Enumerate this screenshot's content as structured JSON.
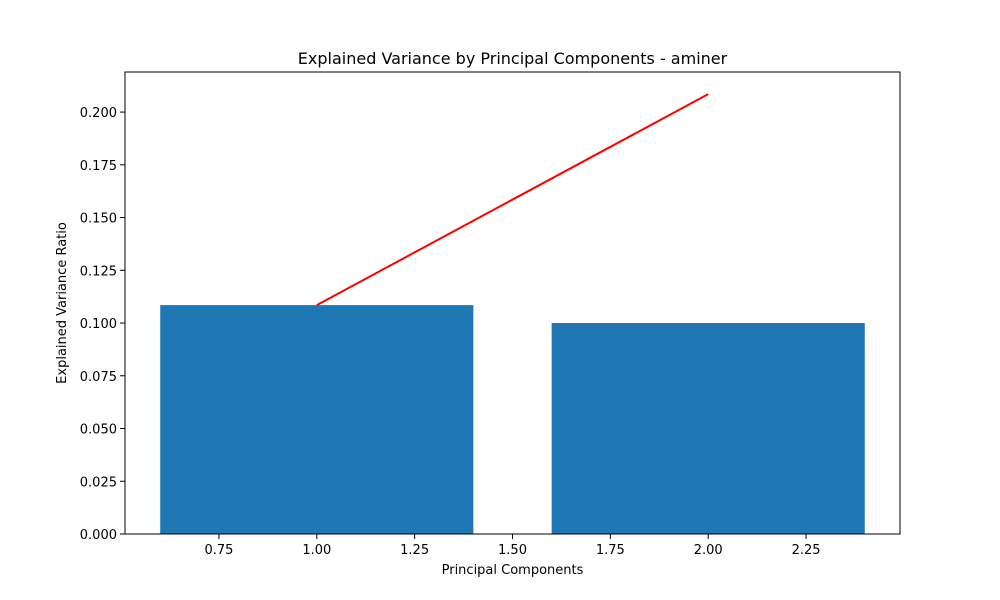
{
  "chart_data": {
    "type": "bar",
    "title": "Explained Variance by Principal Components - aminer",
    "xlabel": "Principal Components",
    "ylabel": "Explained Variance Ratio",
    "xlim": [
      0.51,
      2.49
    ],
    "ylim": [
      0.0,
      0.219
    ],
    "x_ticks": [
      "0.75",
      "1.00",
      "1.25",
      "1.50",
      "1.75",
      "2.00",
      "2.25"
    ],
    "y_ticks": [
      "0.000",
      "0.025",
      "0.050",
      "0.075",
      "0.100",
      "0.125",
      "0.150",
      "0.175",
      "0.200"
    ],
    "grid": false,
    "bars": {
      "x": [
        1,
        2
      ],
      "values": [
        0.1085,
        0.1
      ],
      "width": 0.8,
      "color": "#1f77b4"
    },
    "line": {
      "x": [
        1,
        2
      ],
      "values": [
        0.1085,
        0.2085
      ],
      "color": "#ff0000"
    }
  }
}
